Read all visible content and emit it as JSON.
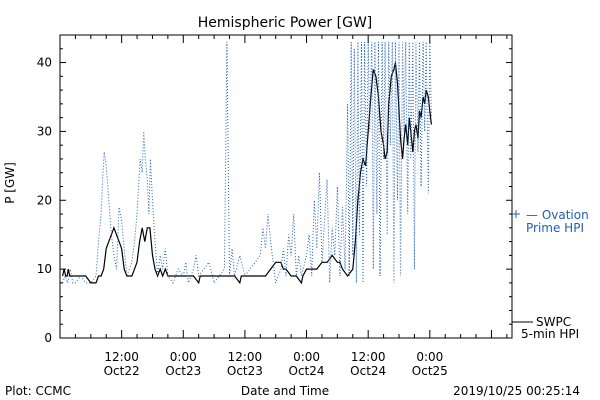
{
  "chart_data": {
    "type": "line",
    "title": "Hemispheric Power [GW]",
    "xlabel": "Date and Time",
    "ylabel": "P [GW]",
    "ylim": [
      0,
      44
    ],
    "xlim": [
      0,
      88
    ],
    "y_ticks": [
      0,
      10,
      20,
      30,
      40
    ],
    "x_ticks": [
      {
        "x": 12,
        "line1": "12:00",
        "line2": "Oct22"
      },
      {
        "x": 24,
        "line1": "0:00",
        "line2": "Oct23"
      },
      {
        "x": 36,
        "line1": "12:00",
        "line2": "Oct23"
      },
      {
        "x": 48,
        "line1": "0:00",
        "line2": "Oct24"
      },
      {
        "x": 60,
        "line1": "12:00",
        "line2": "Oct24"
      },
      {
        "x": 72,
        "line1": "0:00",
        "line2": "Oct25"
      }
    ],
    "grid": false,
    "series": [
      {
        "name": "SWPC 5-min HPI",
        "legend_lines": [
          "SWPC",
          "5-min HPI"
        ],
        "color": "#000000",
        "style": "solid",
        "points": [
          [
            0.5,
            9
          ],
          [
            0.8,
            10
          ],
          [
            1.1,
            9
          ],
          [
            1.4,
            9
          ],
          [
            1.6,
            10
          ],
          [
            1.9,
            9
          ],
          [
            2.5,
            9
          ],
          [
            4,
            9
          ],
          [
            5,
            9
          ],
          [
            6,
            8
          ],
          [
            7,
            8
          ],
          [
            7.5,
            9
          ],
          [
            8,
            9
          ],
          [
            8.5,
            10
          ],
          [
            9,
            13
          ],
          [
            9.5,
            14
          ],
          [
            10,
            15
          ],
          [
            10.5,
            16
          ],
          [
            11,
            15
          ],
          [
            11.5,
            14
          ],
          [
            12,
            13
          ],
          [
            12.5,
            10
          ],
          [
            13,
            9
          ],
          [
            14,
            9
          ],
          [
            14.5,
            10
          ],
          [
            15,
            11
          ],
          [
            15.5,
            14
          ],
          [
            16,
            16
          ],
          [
            16.5,
            14
          ],
          [
            17,
            16
          ],
          [
            17.5,
            16
          ],
          [
            18,
            12
          ],
          [
            18.5,
            10
          ],
          [
            19,
            9
          ],
          [
            19.5,
            10
          ],
          [
            20,
            9
          ],
          [
            20.5,
            10
          ],
          [
            21,
            9
          ],
          [
            22,
            9
          ],
          [
            23,
            9
          ],
          [
            24,
            9
          ],
          [
            25,
            9
          ],
          [
            26,
            9
          ],
          [
            27,
            8
          ],
          [
            27.3,
            9
          ],
          [
            28,
            9
          ],
          [
            30,
            9
          ],
          [
            32,
            9
          ],
          [
            34,
            9
          ],
          [
            35,
            8
          ],
          [
            35.3,
            9
          ],
          [
            37,
            9
          ],
          [
            39,
            9
          ],
          [
            40,
            9
          ],
          [
            41,
            10
          ],
          [
            42,
            11
          ],
          [
            43,
            11
          ],
          [
            43.5,
            10
          ],
          [
            44,
            10
          ],
          [
            45,
            9
          ],
          [
            46,
            9
          ],
          [
            47,
            8
          ],
          [
            47.3,
            9
          ],
          [
            48,
            10
          ],
          [
            49,
            10
          ],
          [
            50,
            10
          ],
          [
            51,
            11
          ],
          [
            52,
            11
          ],
          [
            53,
            12
          ],
          [
            54,
            11
          ],
          [
            54.5,
            11
          ],
          [
            55,
            10
          ],
          [
            56,
            9
          ],
          [
            57,
            10
          ],
          [
            57.5,
            14
          ],
          [
            58,
            20
          ],
          [
            58.5,
            24
          ],
          [
            59,
            26
          ],
          [
            59.5,
            25
          ],
          [
            60,
            30
          ],
          [
            60.5,
            35
          ],
          [
            61,
            39
          ],
          [
            61.5,
            38
          ],
          [
            62,
            35
          ],
          [
            62.5,
            30
          ],
          [
            63,
            28
          ],
          [
            63.3,
            26
          ],
          [
            63.7,
            27
          ],
          [
            64,
            34
          ],
          [
            64.5,
            38
          ],
          [
            65,
            39
          ],
          [
            65.3,
            40
          ],
          [
            65.7,
            37
          ],
          [
            66,
            33
          ],
          [
            66.3,
            29
          ],
          [
            66.7,
            26
          ],
          [
            67,
            29
          ],
          [
            67.3,
            31
          ],
          [
            67.7,
            28
          ],
          [
            68,
            32
          ],
          [
            68.3,
            30
          ],
          [
            68.7,
            27
          ],
          [
            69,
            30
          ],
          [
            69.3,
            31
          ],
          [
            69.7,
            29
          ],
          [
            70,
            33
          ],
          [
            70.3,
            32
          ],
          [
            70.7,
            35
          ],
          [
            71,
            34
          ],
          [
            71.3,
            36
          ],
          [
            71.7,
            35
          ],
          [
            72,
            33
          ],
          [
            72.3,
            31
          ]
        ]
      },
      {
        "name": "Ovation Prime HPI",
        "legend_lines": [
          "— Ovation",
          "Prime HPI"
        ],
        "color": "#1f5fbf",
        "style": "dotted",
        "points": [
          [
            0.5,
            8
          ],
          [
            1,
            9
          ],
          [
            1.5,
            8
          ],
          [
            2,
            10
          ],
          [
            2.5,
            8
          ],
          [
            3,
            8
          ],
          [
            4,
            9
          ],
          [
            5,
            8
          ],
          [
            6,
            8
          ],
          [
            7,
            9
          ],
          [
            7.5,
            14
          ],
          [
            8,
            18
          ],
          [
            8.3,
            23
          ],
          [
            8.6,
            27
          ],
          [
            9,
            25
          ],
          [
            9.5,
            20
          ],
          [
            10,
            15
          ],
          [
            10.5,
            12
          ],
          [
            11,
            10
          ],
          [
            11.5,
            19
          ],
          [
            12,
            17
          ],
          [
            12.5,
            13
          ],
          [
            13,
            9
          ],
          [
            13.5,
            10
          ],
          [
            14,
            11
          ],
          [
            14.5,
            14
          ],
          [
            15,
            18
          ],
          [
            15.3,
            22
          ],
          [
            15.6,
            26
          ],
          [
            16,
            24
          ],
          [
            16.3,
            30
          ],
          [
            16.6,
            26
          ],
          [
            17,
            23
          ],
          [
            17.3,
            18
          ],
          [
            17.6,
            26
          ],
          [
            18,
            20
          ],
          [
            18.5,
            14
          ],
          [
            19,
            9
          ],
          [
            19.5,
            12
          ],
          [
            20,
            10
          ],
          [
            20.5,
            13
          ],
          [
            21,
            9
          ],
          [
            22,
            8
          ],
          [
            23,
            10
          ],
          [
            24,
            9
          ],
          [
            24.5,
            11
          ],
          [
            25,
            8
          ],
          [
            26,
            10
          ],
          [
            26.5,
            12
          ],
          [
            27,
            9
          ],
          [
            28,
            10
          ],
          [
            29,
            11
          ],
          [
            30,
            8
          ],
          [
            31,
            9
          ],
          [
            32,
            10
          ],
          [
            32.5,
            43
          ],
          [
            33,
            9
          ],
          [
            33.5,
            13
          ],
          [
            34,
            9
          ],
          [
            35,
            12
          ],
          [
            36,
            9
          ],
          [
            37,
            10
          ],
          [
            38,
            11
          ],
          [
            39,
            12
          ],
          [
            39.5,
            16
          ],
          [
            40,
            13
          ],
          [
            40.5,
            18
          ],
          [
            41,
            14
          ],
          [
            41.5,
            11
          ],
          [
            42,
            8
          ],
          [
            43,
            10
          ],
          [
            43.5,
            13
          ],
          [
            44,
            9
          ],
          [
            44.5,
            15
          ],
          [
            45,
            12
          ],
          [
            45.5,
            18
          ],
          [
            46,
            9
          ],
          [
            46.5,
            12
          ],
          [
            47,
            9
          ],
          [
            48,
            12
          ],
          [
            48.5,
            15
          ],
          [
            49,
            9
          ],
          [
            49.5,
            20
          ],
          [
            50,
            13
          ],
          [
            50.5,
            24
          ],
          [
            51,
            11
          ],
          [
            51.5,
            17
          ],
          [
            52,
            23
          ],
          [
            52.5,
            8
          ],
          [
            53,
            16
          ],
          [
            53.5,
            12
          ],
          [
            54,
            22
          ],
          [
            54.5,
            9
          ],
          [
            55,
            19
          ],
          [
            55.5,
            10
          ],
          [
            56,
            34
          ],
          [
            56.3,
            9
          ],
          [
            56.7,
            43
          ],
          [
            57,
            12
          ],
          [
            57.3,
            42
          ],
          [
            57.7,
            8
          ],
          [
            58,
            43
          ],
          [
            58.3,
            15
          ],
          [
            58.7,
            43
          ],
          [
            59,
            8
          ],
          [
            59.3,
            43
          ],
          [
            59.7,
            22
          ],
          [
            60,
            43
          ],
          [
            60.3,
            30
          ],
          [
            60.7,
            43
          ],
          [
            61,
            10
          ],
          [
            61.3,
            43
          ],
          [
            61.7,
            18
          ],
          [
            62,
            43
          ],
          [
            62.3,
            9
          ],
          [
            62.7,
            43
          ],
          [
            63,
            26
          ],
          [
            63.3,
            43
          ],
          [
            63.7,
            15
          ],
          [
            64,
            43
          ],
          [
            64.3,
            28
          ],
          [
            64.7,
            43
          ],
          [
            65,
            8
          ],
          [
            65.3,
            43
          ],
          [
            65.7,
            20
          ],
          [
            66,
            43
          ],
          [
            66.3,
            9
          ],
          [
            66.7,
            43
          ],
          [
            67,
            30
          ],
          [
            67.3,
            43
          ],
          [
            67.7,
            18
          ],
          [
            68,
            43
          ],
          [
            68.3,
            26
          ],
          [
            68.7,
            43
          ],
          [
            69,
            10
          ],
          [
            69.3,
            43
          ],
          [
            69.7,
            27
          ],
          [
            70,
            43
          ],
          [
            70.3,
            22
          ],
          [
            70.7,
            43
          ],
          [
            71,
            30
          ],
          [
            71.3,
            43
          ],
          [
            71.7,
            21
          ],
          [
            72,
            43
          ],
          [
            72.3,
            32
          ]
        ]
      }
    ]
  },
  "footer": {
    "plot_source": "Plot: CCMC",
    "timestamp": "2019/10/25 00:25:14"
  }
}
